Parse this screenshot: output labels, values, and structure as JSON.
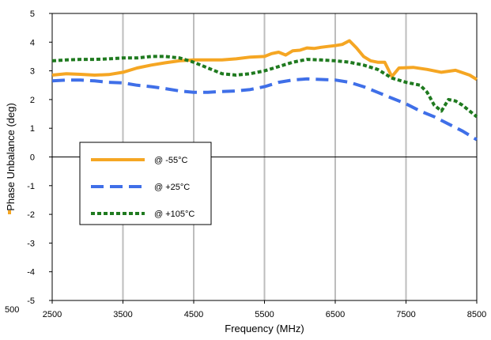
{
  "chart_data": {
    "type": "line",
    "title": "",
    "xlabel": "Frequency (MHz)",
    "ylabel": "Phase Unbalance (deg)",
    "xlim": [
      2500,
      8500
    ],
    "ylim": [
      -5,
      5
    ],
    "xticks": [
      2500,
      3500,
      4500,
      5500,
      6500,
      7500,
      8500
    ],
    "yticks": [
      -5,
      -4,
      -3,
      -2,
      -1,
      0,
      1,
      2,
      3,
      4,
      5
    ],
    "grid": "vertical",
    "legend_position": "center-left",
    "clipped_left_text": [
      "500"
    ],
    "series": [
      {
        "name": "@ -55°C",
        "color": "#f5a623",
        "dash": "solid",
        "x": [
          2500,
          2700,
          2900,
          3100,
          3300,
          3500,
          3700,
          3900,
          4100,
          4300,
          4500,
          4700,
          4900,
          5100,
          5300,
          5500,
          5600,
          5700,
          5800,
          5900,
          6000,
          6100,
          6200,
          6300,
          6400,
          6500,
          6600,
          6700,
          6800,
          6900,
          7000,
          7100,
          7200,
          7300,
          7400,
          7600,
          7800,
          8000,
          8200,
          8400,
          8500
        ],
        "y": [
          2.85,
          2.9,
          2.88,
          2.85,
          2.87,
          2.95,
          3.1,
          3.2,
          3.28,
          3.35,
          3.38,
          3.38,
          3.38,
          3.42,
          3.48,
          3.5,
          3.6,
          3.65,
          3.55,
          3.7,
          3.72,
          3.8,
          3.78,
          3.82,
          3.85,
          3.88,
          3.92,
          4.05,
          3.8,
          3.5,
          3.35,
          3.3,
          3.3,
          2.8,
          3.1,
          3.12,
          3.05,
          2.95,
          3.02,
          2.85,
          2.7
        ]
      },
      {
        "name": "@ +25°C",
        "color": "#3f6fe8",
        "dash": "long-dash",
        "x": [
          2500,
          2700,
          2900,
          3100,
          3300,
          3500,
          3700,
          3900,
          4100,
          4300,
          4500,
          4700,
          4900,
          5100,
          5300,
          5500,
          5700,
          5900,
          6100,
          6300,
          6500,
          6700,
          6900,
          7100,
          7300,
          7500,
          7700,
          7900,
          8100,
          8300,
          8500
        ],
        "y": [
          2.65,
          2.68,
          2.68,
          2.65,
          2.6,
          2.58,
          2.5,
          2.45,
          2.38,
          2.3,
          2.25,
          2.25,
          2.28,
          2.3,
          2.35,
          2.45,
          2.6,
          2.68,
          2.72,
          2.7,
          2.68,
          2.6,
          2.45,
          2.25,
          2.05,
          1.85,
          1.6,
          1.4,
          1.15,
          0.9,
          0.6
        ]
      },
      {
        "name": "@ +105°C",
        "color": "#1f7a1f",
        "dash": "short-dash",
        "x": [
          2500,
          2700,
          2900,
          3100,
          3300,
          3500,
          3700,
          3900,
          4100,
          4300,
          4500,
          4700,
          4900,
          5100,
          5300,
          5500,
          5700,
          5900,
          6100,
          6300,
          6500,
          6700,
          6900,
          7100,
          7300,
          7500,
          7700,
          7800,
          7900,
          8000,
          8100,
          8200,
          8300,
          8400,
          8500
        ],
        "y": [
          3.35,
          3.38,
          3.4,
          3.4,
          3.42,
          3.45,
          3.45,
          3.5,
          3.5,
          3.45,
          3.3,
          3.1,
          2.9,
          2.85,
          2.9,
          3.0,
          3.15,
          3.3,
          3.4,
          3.38,
          3.35,
          3.3,
          3.2,
          3.05,
          2.75,
          2.6,
          2.5,
          2.25,
          1.8,
          1.6,
          2.0,
          1.95,
          1.8,
          1.6,
          1.4
        ]
      }
    ]
  }
}
